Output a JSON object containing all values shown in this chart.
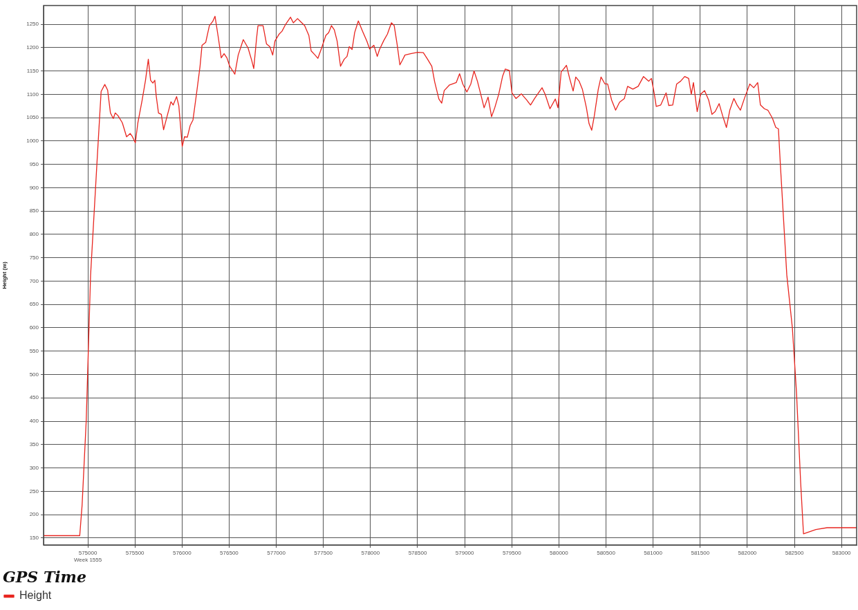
{
  "chart_data": {
    "type": "line",
    "xlabel": "GPS Time",
    "ylabel": "Height (m)",
    "xlim": [
      574530,
      583160
    ],
    "ylim": [
      135,
      1290
    ],
    "xticks": [
      {
        "value": 575000,
        "label": "575000\nWeek 1555"
      },
      575500,
      576000,
      576500,
      577000,
      577500,
      578000,
      578500,
      579000,
      579500,
      580000,
      580500,
      581000,
      581500,
      582000,
      582500,
      583000
    ],
    "yticks": [
      150,
      200,
      250,
      300,
      350,
      400,
      450,
      500,
      550,
      600,
      650,
      700,
      750,
      800,
      850,
      900,
      950,
      1000,
      1050,
      1100,
      1150,
      1200,
      1250
    ],
    "grid": true,
    "legend": "bottom left",
    "marker": "none",
    "line_style": "solid",
    "x": [
      574530,
      574914,
      574939,
      574983,
      575029,
      575096,
      575141,
      575180,
      575210,
      575240,
      575270,
      575291,
      575321,
      575366,
      575411,
      575450,
      575471,
      575504,
      575531,
      575576,
      575612,
      575642,
      575666,
      575690,
      575711,
      575726,
      575750,
      575780,
      575804,
      575831,
      575882,
      575906,
      575942,
      575966,
      576002,
      576026,
      576056,
      576086,
      576116,
      576152,
      576191,
      576212,
      576251,
      576290,
      576326,
      576350,
      576386,
      576416,
      576446,
      576476,
      576506,
      576560,
      576596,
      576650,
      576701,
      576740,
      576761,
      576791,
      576806,
      576860,
      576896,
      576932,
      576962,
      576986,
      577031,
      577061,
      577100,
      577151,
      577181,
      577226,
      577256,
      577301,
      577346,
      577370,
      577412,
      577442,
      577481,
      577526,
      577556,
      577586,
      577616,
      577646,
      577682,
      577721,
      577751,
      577775,
      577805,
      577832,
      577871,
      577916,
      577961,
      577991,
      578036,
      578072,
      578096,
      578141,
      578180,
      578222,
      578252,
      578282,
      578312,
      578336,
      578366,
      578426,
      578501,
      578561,
      578606,
      578651,
      578681,
      578726,
      578756,
      578783,
      578839,
      578910,
      578946,
      578980,
      579023,
      579065,
      579099,
      579135,
      579178,
      579206,
      579248,
      579285,
      579319,
      579361,
      579403,
      579431,
      579474,
      579502,
      579544,
      579601,
      579657,
      579699,
      579742,
      579821,
      579854,
      579905,
      579962,
      579990,
      580024,
      580058,
      580080,
      580114,
      580151,
      580179,
      580215,
      580249,
      580292,
      580320,
      580348,
      580376,
      580418,
      580447,
      580489,
      580517,
      580559,
      580602,
      580644,
      580695,
      580729,
      580785,
      580841,
      580898,
      580954,
      580982,
      581011,
      581033,
      581081,
      581138,
      581166,
      581208,
      581250,
      581292,
      581335,
      581377,
      581405,
      581428,
      581468,
      581504,
      581546,
      581589,
      581625,
      581659,
      581701,
      581738,
      581778,
      581814,
      581857,
      581891,
      581927,
      581969,
      582026,
      582068,
      582110,
      582139,
      582181,
      582218,
      582266,
      582302,
      582330,
      582350,
      582419,
      582478,
      582522,
      582566,
      582596,
      582728,
      582846,
      583160
    ],
    "series": [
      {
        "name": "Height",
        "color": "#e8251f",
        "values": [
          155,
          155,
          220,
          402,
          712,
          950,
          1106,
          1121,
          1109,
          1060,
          1048,
          1060,
          1054,
          1039,
          1009,
          1016,
          1010,
          996,
          1039,
          1087,
          1130,
          1175,
          1130,
          1124,
          1130,
          1096,
          1060,
          1057,
          1024,
          1045,
          1084,
          1077,
          1095,
          1075,
          988,
          1009,
          1008,
          1033,
          1045,
          1099,
          1160,
          1205,
          1211,
          1247,
          1256,
          1267,
          1220,
          1178,
          1187,
          1178,
          1160,
          1143,
          1184,
          1217,
          1199,
          1172,
          1155,
          1220,
          1247,
          1247,
          1208,
          1202,
          1184,
          1214,
          1229,
          1235,
          1250,
          1265,
          1253,
          1262,
          1256,
          1247,
          1226,
          1193,
          1184,
          1177,
          1199,
          1226,
          1232,
          1247,
          1238,
          1214,
          1160,
          1175,
          1181,
          1202,
          1196,
          1232,
          1257,
          1235,
          1214,
          1197,
          1205,
          1181,
          1196,
          1215,
          1229,
          1253,
          1247,
          1208,
          1163,
          1172,
          1184,
          1187,
          1190,
          1189,
          1175,
          1160,
          1127,
          1090,
          1081,
          1108,
          1120,
          1125,
          1144,
          1122,
          1105,
          1122,
          1150,
          1128,
          1094,
          1071,
          1094,
          1052,
          1071,
          1100,
          1139,
          1154,
          1151,
          1103,
          1091,
          1101,
          1088,
          1077,
          1091,
          1114,
          1100,
          1069,
          1090,
          1071,
          1148,
          1156,
          1162,
          1134,
          1107,
          1137,
          1128,
          1111,
          1071,
          1037,
          1023,
          1054,
          1111,
          1137,
          1122,
          1122,
          1088,
          1066,
          1083,
          1091,
          1117,
          1111,
          1117,
          1138,
          1128,
          1134,
          1103,
          1074,
          1077,
          1103,
          1076,
          1077,
          1122,
          1128,
          1138,
          1134,
          1100,
          1125,
          1063,
          1100,
          1108,
          1088,
          1057,
          1063,
          1080,
          1054,
          1029,
          1066,
          1091,
          1077,
          1066,
          1091,
          1122,
          1114,
          1125,
          1077,
          1069,
          1066,
          1049,
          1029,
          1026,
          952,
          713,
          600,
          461,
          269,
          159,
          168,
          172,
          172
        ]
      }
    ]
  }
}
